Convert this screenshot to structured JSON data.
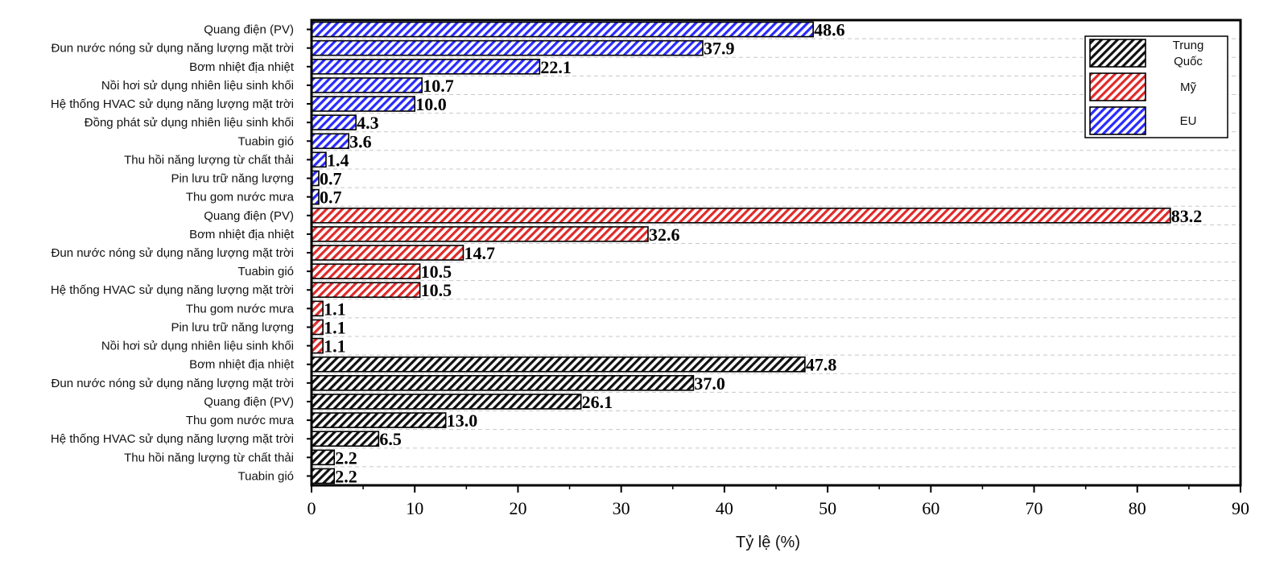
{
  "chart_data": {
    "type": "bar",
    "orientation": "horizontal",
    "xlabel": "Tỷ lệ (%)",
    "ylabel": "",
    "xlim": [
      0,
      90
    ],
    "xticks": [
      0,
      10,
      20,
      30,
      40,
      50,
      60,
      70,
      80,
      90
    ],
    "grid": "horizontal dashed",
    "legend_position": "top-right",
    "series": [
      {
        "name": "EU",
        "color": "#2a2aff",
        "categories": [
          "Quang điện (PV)",
          "Đun nước nóng sử dụng năng lượng mặt trời",
          "Bơm nhiệt địa nhiệt",
          "Nồi hơi sử dụng nhiên liệu sinh khối",
          "Hệ thống HVAC sử dụng năng lượng mặt trời",
          "Đồng phát sử dụng nhiên liệu sinh khối",
          "Tuabin gió",
          "Thu hồi năng lượng từ chất thải",
          "Pin lưu trữ năng lượng",
          "Thu gom nước mưa"
        ],
        "values": [
          48.6,
          37.9,
          22.1,
          10.7,
          10.0,
          4.3,
          3.6,
          1.4,
          0.7,
          0.7
        ],
        "labels": [
          "48.6",
          "37.9",
          "22.1",
          "10.7",
          "10.0",
          "4.3",
          "3.6",
          "1.4",
          "0.7",
          "0.7"
        ]
      },
      {
        "name": "Mỹ",
        "color": "#e02a2a",
        "categories": [
          "Quang điện (PV)",
          "Bơm nhiệt địa nhiệt",
          "Đun nước nóng sử dụng năng lượng mặt trời",
          "Tuabin gió",
          "Hệ thống HVAC sử dụng năng lượng mặt trời",
          "Thu gom nước mưa",
          "Pin lưu trữ năng lượng",
          "Nồi hơi sử dụng nhiên liệu sinh khối"
        ],
        "values": [
          83.2,
          32.6,
          14.7,
          10.5,
          10.5,
          1.1,
          1.1,
          1.1
        ],
        "labels": [
          "83.2",
          "32.6",
          "14.7",
          "10.5",
          "10.5",
          "1.1",
          "1.1",
          "1.1"
        ]
      },
      {
        "name": "Trung Quốc",
        "color": "#111111",
        "categories": [
          "Bơm nhiệt địa nhiệt",
          "Đun nước nóng sử dụng năng lượng mặt trời",
          "Quang điện (PV)",
          "Thu gom nước mưa",
          "Hệ thống HVAC sử dụng năng lượng mặt trời",
          "Thu hồi năng lượng từ chất thải",
          "Tuabin gió"
        ],
        "values": [
          47.8,
          37.0,
          26.1,
          13.0,
          6.5,
          2.2,
          2.2
        ],
        "labels": [
          "47.8",
          "37.0",
          "26.1",
          "13.0",
          "6.5",
          "2.2",
          "2.2"
        ]
      }
    ],
    "legend": [
      {
        "name_lines": [
          "Trung",
          "Quốc"
        ],
        "color": "#111111"
      },
      {
        "name_lines": [
          "Mỹ"
        ],
        "color": "#e02a2a"
      },
      {
        "name_lines": [
          "EU"
        ],
        "color": "#2a2aff"
      }
    ]
  }
}
